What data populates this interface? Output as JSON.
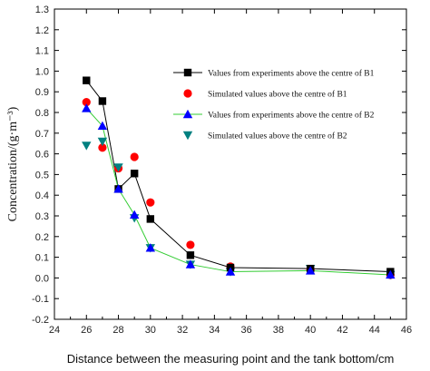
{
  "chart_data": {
    "type": "line",
    "xlabel": "Distance between the measuring point and the tank bottom/cm",
    "ylabel": "Concentration/(g·m⁻³)",
    "xlim": [
      24,
      46
    ],
    "ylim": [
      -0.2,
      1.3
    ],
    "xticks": [
      "24",
      "26",
      "28",
      "30",
      "32",
      "34",
      "36",
      "38",
      "40",
      "42",
      "44",
      "46"
    ],
    "yticks": [
      "-0.2",
      "-0.1",
      "0.0",
      "0.1",
      "0.2",
      "0.3",
      "0.4",
      "0.5",
      "0.6",
      "0.7",
      "0.8",
      "0.9",
      "1.0",
      "1.1",
      "1.2",
      "1.3"
    ],
    "legend_position": "top-right",
    "series": [
      {
        "name": "Values from experiments above the centre of B1",
        "color": "#000000",
        "marker": "square",
        "line": true,
        "x": [
          26,
          27,
          28,
          29,
          30,
          32.5,
          35,
          40,
          45
        ],
        "y": [
          0.955,
          0.855,
          0.43,
          0.505,
          0.285,
          0.11,
          0.05,
          0.045,
          0.03
        ]
      },
      {
        "name": "Simulated values above the centre of B1",
        "color": "#ff0000",
        "marker": "circle",
        "line": false,
        "x": [
          26,
          27,
          28,
          29,
          30,
          32.5,
          35,
          40,
          45
        ],
        "y": [
          0.85,
          0.63,
          0.53,
          0.585,
          0.365,
          0.16,
          0.055,
          0.04,
          0.015
        ]
      },
      {
        "name": "Values from experiments above the centre of B2",
        "color": "#0000ff",
        "marker": "triangle-up",
        "line": true,
        "line_color": "#33cc33",
        "x": [
          26,
          27,
          28,
          29,
          30,
          32.5,
          35,
          40,
          45
        ],
        "y": [
          0.82,
          0.735,
          0.43,
          0.305,
          0.145,
          0.065,
          0.03,
          0.035,
          0.015
        ]
      },
      {
        "name": "Simulated values above the centre of B2",
        "color": "#008080",
        "marker": "triangle-down",
        "line": false,
        "x": [
          26,
          27,
          28,
          29,
          30,
          32.5,
          35,
          40,
          45
        ],
        "y": [
          0.64,
          0.66,
          0.535,
          0.29,
          0.145,
          0.065,
          0.03,
          0.045,
          0.015
        ]
      }
    ]
  }
}
